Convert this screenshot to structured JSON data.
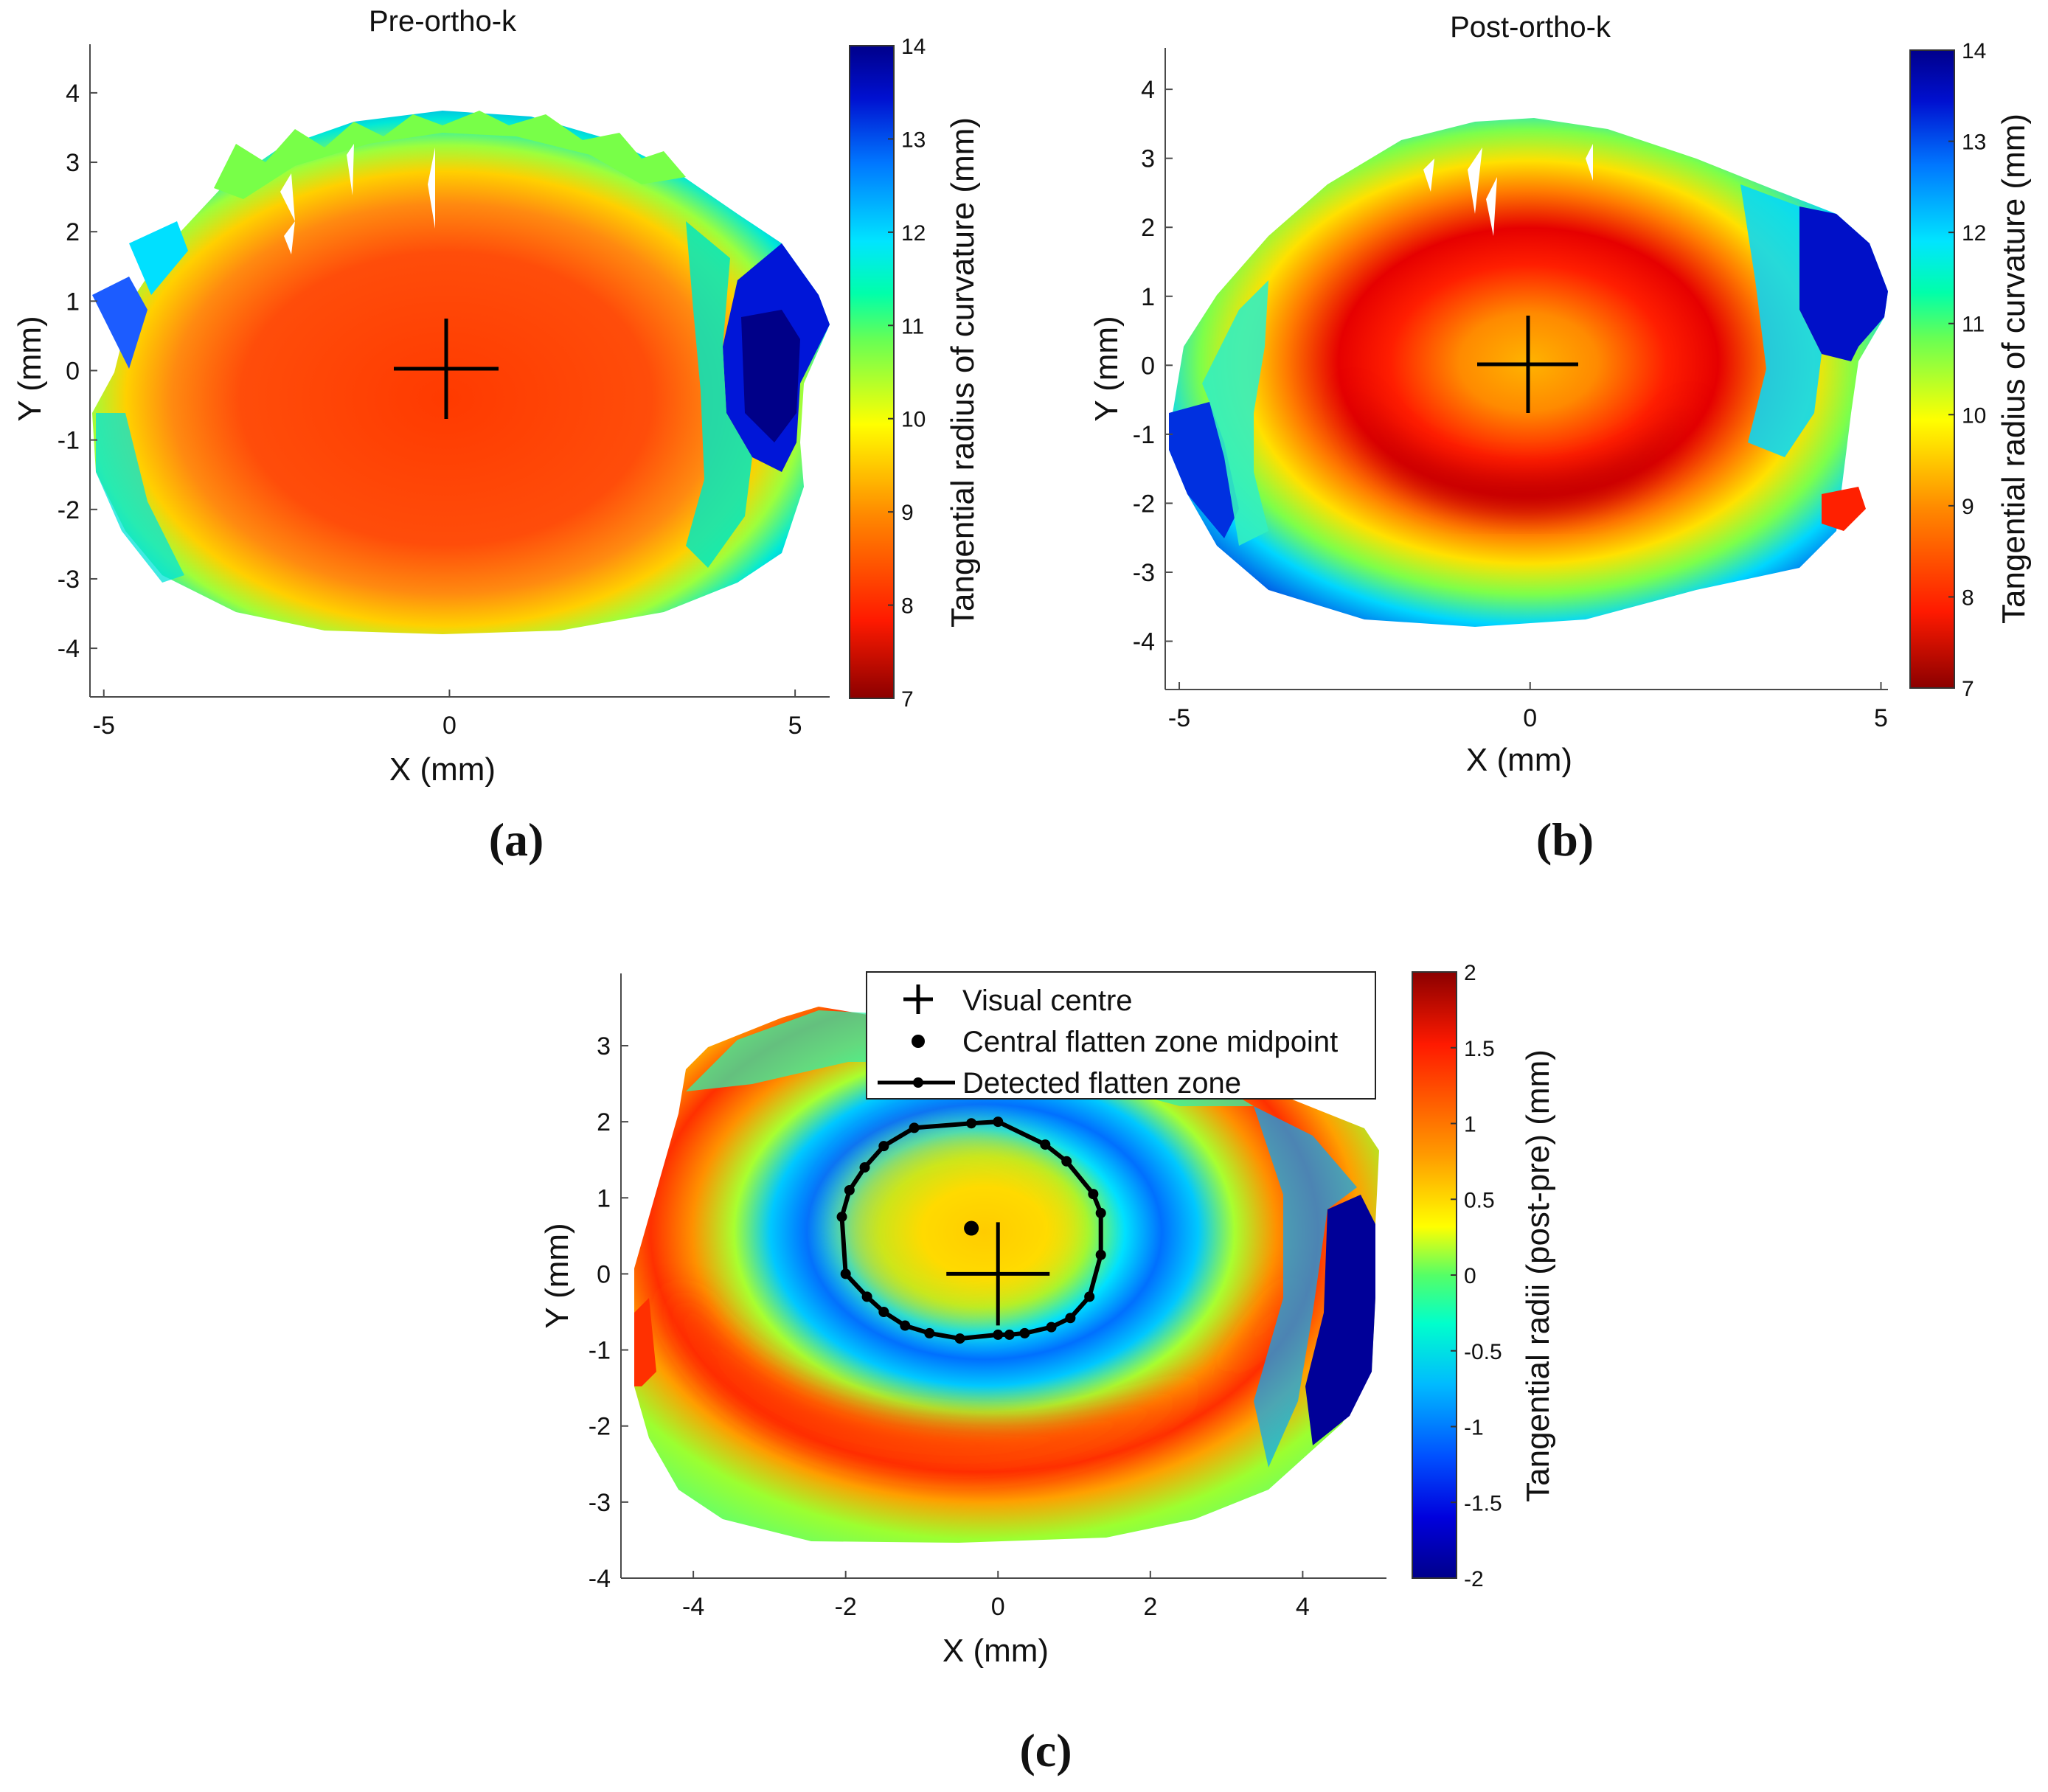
{
  "chart_data": [
    {
      "type": "heatmap",
      "panel": "(a)",
      "title": "Pre-ortho-k",
      "xlabel": "X (mm)",
      "ylabel": "Y (mm)",
      "xlim": [
        -5.2,
        5.5
      ],
      "ylim": [
        -4.7,
        4.7
      ],
      "x_ticks": [
        -5,
        0,
        5
      ],
      "y_ticks": [
        -4,
        -3,
        -2,
        -1,
        0,
        1,
        2,
        3,
        4
      ],
      "colorbar": {
        "label": "Tangential radius of curvature (mm)",
        "range": [
          7,
          14
        ],
        "ticks": [
          7,
          8,
          9,
          10,
          11,
          12,
          13,
          14
        ]
      },
      "marker": {
        "name": "Visual centre",
        "x": 0,
        "y": 0
      }
    },
    {
      "type": "heatmap",
      "panel": "(b)",
      "title": "Post-ortho-k",
      "xlabel": "X (mm)",
      "ylabel": "Y (mm)",
      "xlim": [
        -5.2,
        5.1
      ],
      "ylim": [
        -4.7,
        4.6
      ],
      "x_ticks": [
        -5,
        0,
        5
      ],
      "y_ticks": [
        -4,
        -3,
        -2,
        -1,
        0,
        1,
        2,
        3,
        4
      ],
      "colorbar": {
        "label": "Tangential radius of curvature (mm)",
        "range": [
          7,
          14
        ],
        "ticks": [
          7,
          8,
          9,
          10,
          11,
          12,
          13,
          14
        ]
      },
      "marker": {
        "name": "Visual centre",
        "x": 0,
        "y": 0
      }
    },
    {
      "type": "heatmap",
      "panel": "(c)",
      "title": "",
      "xlabel": "X (mm)",
      "ylabel": "Y (mm)",
      "xlim": [
        -4.95,
        5.1
      ],
      "ylim": [
        -4.0,
        3.95
      ],
      "x_ticks": [
        -4,
        -2,
        0,
        2,
        4
      ],
      "y_ticks": [
        -4,
        -3,
        -2,
        -1,
        0,
        1,
        2,
        3
      ],
      "colorbar": {
        "label": "Tangential radii (post-pre) (mm)",
        "range": [
          -2,
          2
        ],
        "ticks": [
          -2,
          -1.5,
          -1,
          -0.5,
          0,
          0.5,
          1,
          1.5,
          2
        ]
      },
      "legend": [
        "Visual centre",
        "Central flatten zone midpoint",
        "Detected flatten zone"
      ],
      "visual_centre": {
        "x": 0,
        "y": 0
      },
      "midpoint": {
        "x": -0.35,
        "y": 0.6
      },
      "flatten_zone": [
        [
          -0.35,
          1.98
        ],
        [
          0,
          2.0
        ],
        [
          0.62,
          1.7
        ],
        [
          0.9,
          1.48
        ],
        [
          1.25,
          1.05
        ],
        [
          1.35,
          0.8
        ],
        [
          1.35,
          0.25
        ],
        [
          1.2,
          -0.3
        ],
        [
          0.95,
          -0.58
        ],
        [
          0.7,
          -0.7
        ],
        [
          0.35,
          -0.78
        ],
        [
          0.15,
          -0.8
        ],
        [
          0,
          -0.8
        ],
        [
          -0.5,
          -0.85
        ],
        [
          -0.9,
          -0.78
        ],
        [
          -1.22,
          -0.68
        ],
        [
          -1.5,
          -0.5
        ],
        [
          -1.72,
          -0.3
        ],
        [
          -2.0,
          0.0
        ],
        [
          -2.05,
          0.75
        ],
        [
          -1.95,
          1.1
        ],
        [
          -1.75,
          1.4
        ],
        [
          -1.5,
          1.68
        ],
        [
          -1.1,
          1.92
        ]
      ]
    }
  ],
  "captions": [
    "(a)",
    "(b)",
    "(c)"
  ]
}
